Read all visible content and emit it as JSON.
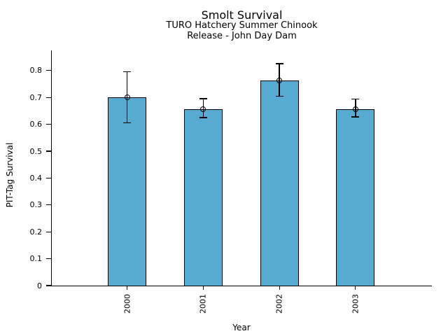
{
  "chart_data": {
    "type": "bar",
    "title": "Smolt Survival",
    "subtitle1": "TURO Hatchery Summer Chinook",
    "subtitle2": "Release - John Day Dam",
    "xlabel": "Year",
    "ylabel": "PIT-Tag Survival",
    "categories": [
      "2000",
      "2001",
      "2002",
      "2003"
    ],
    "values": [
      0.7,
      0.657,
      0.764,
      0.657
    ],
    "error_low": [
      0.605,
      0.625,
      0.704,
      0.627
    ],
    "error_high": [
      0.795,
      0.695,
      0.826,
      0.694
    ],
    "yticks": [
      0,
      0.1,
      0.2,
      0.3,
      0.4,
      0.5,
      0.6,
      0.7,
      0.8
    ],
    "ytick_labels": [
      "0",
      "0.1",
      "0.2",
      "0.3",
      "0.4",
      "0.5",
      "0.6",
      "0.7",
      "0.8"
    ],
    "ylim": [
      0,
      0.875
    ],
    "grid": false,
    "legend": null,
    "bar_color": "#57aad2",
    "bar_edge_color": "#000000",
    "error_color": "#000000",
    "marker": "open-circle"
  }
}
